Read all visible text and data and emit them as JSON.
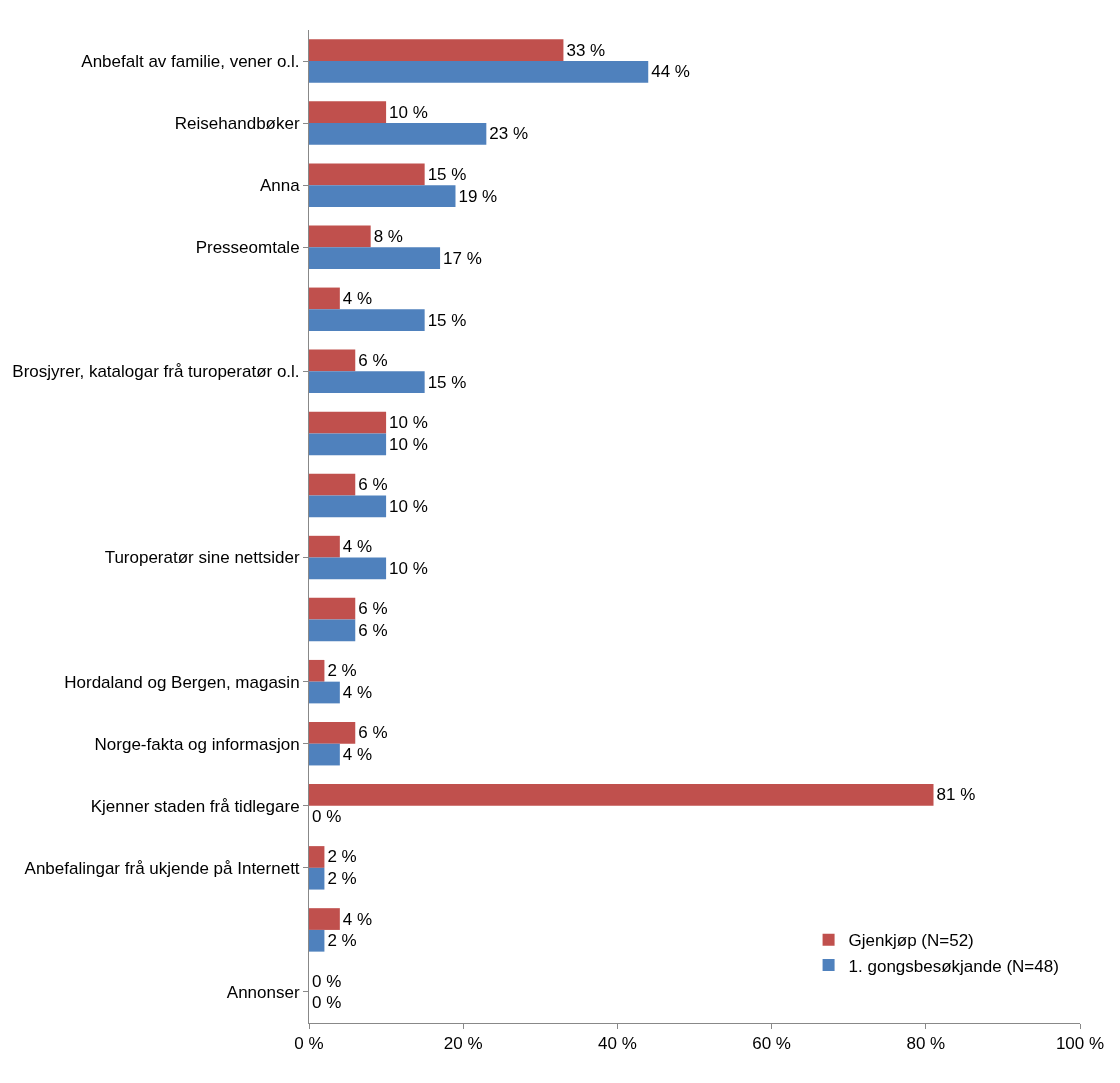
{
  "chart_data": {
    "type": "bar",
    "orientation": "horizontal",
    "categories": [
      "Anbefalt av familie, vener o.l.",
      "Reisehandbøker",
      "Anna",
      "Presseomtale",
      null,
      "Brosjyrer, katalogar frå turoperatør o.l.",
      null,
      null,
      "Turoperatør sine nettsider",
      null,
      "Hordaland og Bergen, magasin",
      "Norge-fakta og informasjon",
      "Kjenner staden frå tidlegare",
      "Anbefalingar frå ukjende på Internett",
      null,
      "Annonser"
    ],
    "series": [
      {
        "name": "Gjenkjøp (N=52)",
        "color": "#c0504d",
        "values": [
          33,
          10,
          15,
          8,
          4,
          6,
          10,
          6,
          4,
          6,
          2,
          6,
          81,
          2,
          4,
          0
        ],
        "value_labels": [
          "33 %",
          "10 %",
          "15 %",
          "8 %",
          "4 %",
          "6 %",
          "10 %",
          "6 %",
          "4 %",
          "6 %",
          "2 %",
          "6 %",
          "81 %",
          "2 %",
          "4 %",
          "0 %"
        ]
      },
      {
        "name": "1. gongsbesøkjande (N=48)",
        "color": "#4f81bd",
        "values": [
          44,
          23,
          19,
          17,
          15,
          15,
          10,
          10,
          10,
          6,
          4,
          4,
          0,
          2,
          2,
          0
        ],
        "value_labels": [
          "44 %",
          "23 %",
          "19 %",
          "17 %",
          "15 %",
          "15 %",
          "10 %",
          "10 %",
          "10 %",
          "6 %",
          "4 %",
          "4 %",
          "0 %",
          "2 %",
          "2 %",
          "0 %"
        ]
      }
    ],
    "xlim": [
      0,
      100
    ],
    "xticks": [
      {
        "value": 0,
        "label": "0 %"
      },
      {
        "value": 20,
        "label": "20 %"
      },
      {
        "value": 40,
        "label": "40 %"
      },
      {
        "value": 60,
        "label": "60 %"
      },
      {
        "value": 80,
        "label": "80 %"
      },
      {
        "value": 100,
        "label": "100 %"
      }
    ],
    "legend": "bottom right"
  }
}
